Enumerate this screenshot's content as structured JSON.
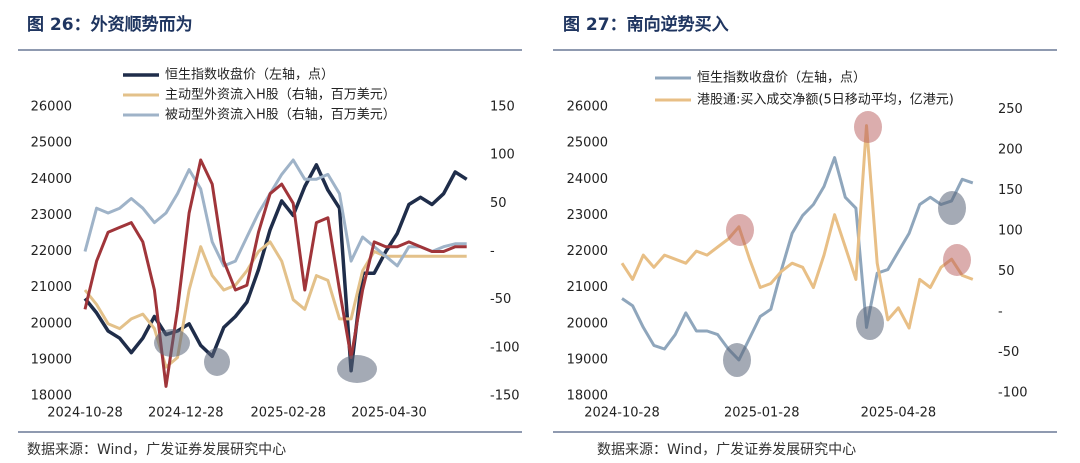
{
  "chart_data": [
    {
      "type": "line",
      "title": "图 26：外资顺势而为",
      "source": "数据来源：Wind，广发证券发展研究中心",
      "x": [
        "2024-10-28",
        "2024-11-04",
        "2024-11-11",
        "2024-11-18",
        "2024-11-25",
        "2024-12-02",
        "2024-12-09",
        "2024-12-16",
        "2024-12-23",
        "2024-12-30",
        "2025-01-06",
        "2025-01-13",
        "2025-01-20",
        "2025-01-27",
        "2025-02-03",
        "2025-02-10",
        "2025-02-17",
        "2025-02-24",
        "2025-03-03",
        "2025-03-10",
        "2025-03-17",
        "2025-03-24",
        "2025-03-31",
        "2025-04-07",
        "2025-04-14",
        "2025-04-21",
        "2025-04-28",
        "2025-05-05",
        "2025-05-12",
        "2025-05-19",
        "2025-05-26",
        "2025-06-02",
        "2025-06-09",
        "2025-06-16"
      ],
      "xlim": [
        "2024-10-28",
        "2025-06-21"
      ],
      "xticks": [
        "2024-10-28",
        "2024-12-28",
        "2025-02-28",
        "2025-04-30"
      ],
      "ylim": [
        18000,
        26000
      ],
      "yticks": [
        18000,
        19000,
        20000,
        21000,
        22000,
        23000,
        24000,
        25000,
        26000
      ],
      "y2lim": [
        -150,
        150
      ],
      "y2ticks": [
        -150,
        -100,
        -50,
        {
          "value": 0,
          "label": "-"
        },
        50,
        100,
        150
      ],
      "series": [
        {
          "name": "恒生指数收盘价（左轴，点）",
          "color": "#1f2d4a",
          "axis": "y",
          "values": [
            20700,
            20300,
            19800,
            19600,
            19200,
            19600,
            20200,
            19700,
            19800,
            20000,
            19400,
            19100,
            19900,
            20200,
            20600,
            21500,
            22600,
            23400,
            23000,
            23800,
            24400,
            23700,
            23200,
            18700,
            21400,
            21400,
            22000,
            22500,
            23300,
            23500,
            23300,
            23600,
            24200,
            24000
          ]
        },
        {
          "name": "主动型外资流入H股（右轴，百万美元）",
          "color": "#e3c18a",
          "axis": "y2",
          "values": [
            -40,
            -55,
            -75,
            -80,
            -70,
            -65,
            -80,
            -120,
            -110,
            -40,
            5,
            -25,
            -40,
            -35,
            -20,
            0,
            10,
            -10,
            -50,
            -60,
            -25,
            -30,
            -70,
            -70,
            -20,
            0,
            -5,
            -5,
            -5,
            -5,
            -5,
            -5,
            -5,
            -5
          ]
        },
        {
          "name": "被动型外资流入H股（右轴，百万美元）",
          "color": "#9fb3c8",
          "axis": "y2",
          "values": [
            0,
            45,
            40,
            45,
            55,
            45,
            30,
            40,
            60,
            85,
            65,
            10,
            -15,
            -10,
            15,
            40,
            60,
            80,
            95,
            75,
            75,
            80,
            60,
            -10,
            15,
            5,
            -5,
            -15,
            5,
            5,
            0,
            5,
            8,
            8
          ]
        },
        {
          "color": "#a0353a",
          "axis": "y2",
          "values": [
            -60,
            -10,
            20,
            25,
            30,
            10,
            -40,
            -140,
            -60,
            40,
            95,
            70,
            -10,
            -40,
            -35,
            20,
            60,
            70,
            50,
            -40,
            30,
            35,
            -40,
            -110,
            -40,
            10,
            5,
            5,
            10,
            5,
            0,
            0,
            5,
            5
          ]
        }
      ]
    },
    {
      "type": "line",
      "title": "图 27：南向逆势买入",
      "source": "数据来源：Wind，广发证券发展研究中心",
      "x": [
        "2024-10-28",
        "2024-11-04",
        "2024-11-11",
        "2024-11-18",
        "2024-11-25",
        "2024-12-02",
        "2024-12-09",
        "2024-12-16",
        "2024-12-23",
        "2024-12-30",
        "2025-01-06",
        "2025-01-13",
        "2025-01-20",
        "2025-01-27",
        "2025-02-03",
        "2025-02-10",
        "2025-02-17",
        "2025-02-24",
        "2025-03-03",
        "2025-03-10",
        "2025-03-17",
        "2025-03-24",
        "2025-03-31",
        "2025-04-07",
        "2025-04-14",
        "2025-04-21",
        "2025-04-28",
        "2025-05-05",
        "2025-05-12",
        "2025-05-19",
        "2025-05-26",
        "2025-06-02",
        "2025-06-09",
        "2025-06-16"
      ],
      "xlim": [
        "2024-10-28",
        "2025-06-24"
      ],
      "xticks": [
        "2024-10-28",
        "2025-01-28",
        "2025-04-28"
      ],
      "ylim": [
        18000,
        26000
      ],
      "yticks": [
        18000,
        19000,
        20000,
        21000,
        22000,
        23000,
        24000,
        25000,
        26000
      ],
      "y2lim": [
        -104,
        253
      ],
      "y2ticks": [
        -100,
        -50,
        {
          "value": 0,
          "label": "-"
        },
        50,
        100,
        150,
        200,
        250
      ],
      "series": [
        {
          "name": "恒生指数收盘价（左轴，点）",
          "color": "#8fa6bc",
          "axis": "y",
          "values": [
            20700,
            20500,
            19900,
            19400,
            19300,
            19700,
            20300,
            19800,
            19800,
            19700,
            19300,
            19000,
            19600,
            20200,
            20400,
            21500,
            22500,
            23000,
            23300,
            23800,
            24600,
            23500,
            23200,
            19900,
            21400,
            21500,
            22000,
            22500,
            23300,
            23500,
            23300,
            23400,
            24000,
            23900
          ]
        },
        {
          "name": "港股通:买入成交净额(5日移动平均，亿港元)",
          "color": "#e8bf86",
          "axis": "y2",
          "values": [
            60,
            40,
            70,
            55,
            70,
            65,
            60,
            75,
            70,
            80,
            90,
            105,
            65,
            30,
            35,
            50,
            60,
            55,
            30,
            70,
            120,
            80,
            40,
            230,
            60,
            -10,
            5,
            -20,
            40,
            30,
            55,
            65,
            45,
            40
          ]
        }
      ]
    }
  ]
}
